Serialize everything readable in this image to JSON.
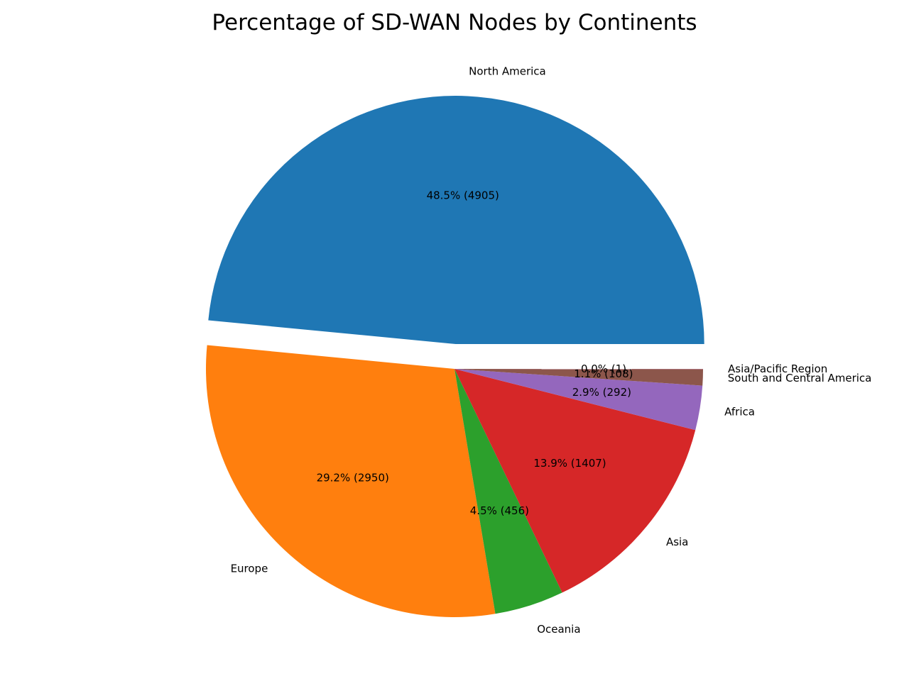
{
  "chart_data": {
    "type": "pie",
    "title": "Percentage of SD-WAN Nodes by Continents",
    "slices": [
      {
        "label": "North America",
        "value": 4905,
        "pct_label": "48.5% (4905)",
        "color": "#1f77b4",
        "exploded": true
      },
      {
        "label": "Europe",
        "value": 2950,
        "pct_label": "29.2% (2950)",
        "color": "#ff7f0e",
        "exploded": false
      },
      {
        "label": "Oceania",
        "value": 456,
        "pct_label": "4.5% (456)",
        "color": "#2ca02c",
        "exploded": false
      },
      {
        "label": "Asia",
        "value": 1407,
        "pct_label": "13.9% (1407)",
        "color": "#d62728",
        "exploded": false
      },
      {
        "label": "Africa",
        "value": 292,
        "pct_label": "2.9% (292)",
        "color": "#9467bd",
        "exploded": false
      },
      {
        "label": "South and Central America",
        "value": 108,
        "pct_label": "1.1% (108)",
        "color": "#8c564b",
        "exploded": false
      },
      {
        "label": "Asia/Pacific Region",
        "value": 1,
        "pct_label": "0.0% (1)",
        "color": "#e377c2",
        "exploded": false
      }
    ]
  }
}
